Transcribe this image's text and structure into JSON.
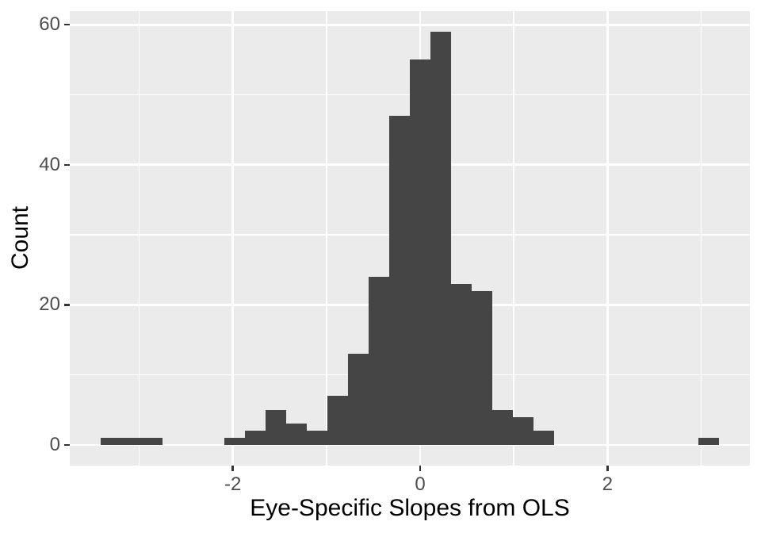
{
  "chart_data": {
    "type": "bar",
    "subtype": "histogram",
    "title": "",
    "xlabel": "Eye-Specific Slopes from OLS",
    "ylabel": "Count",
    "x_ticks": [
      -2,
      0,
      2
    ],
    "x_tick_labels": [
      "-2",
      "0",
      "2"
    ],
    "y_ticks": [
      0,
      20,
      40,
      60
    ],
    "y_tick_labels": [
      "0",
      "20",
      "40",
      "60"
    ],
    "x_minor_ticks": [
      -3,
      -1,
      1,
      3
    ],
    "y_minor_ticks": [
      10,
      30,
      50
    ],
    "xlim": [
      -3.74,
      3.52
    ],
    "ylim": [
      -2.95,
      61.95
    ],
    "grid": true,
    "legend": "none",
    "binwidth": 0.22,
    "bins": [
      {
        "start": -3.41,
        "count": 1
      },
      {
        "start": -3.19,
        "count": 1
      },
      {
        "start": -2.97,
        "count": 1
      },
      {
        "start": -2.09,
        "count": 1
      },
      {
        "start": -1.87,
        "count": 2
      },
      {
        "start": -1.65,
        "count": 5
      },
      {
        "start": -1.43,
        "count": 3
      },
      {
        "start": -1.21,
        "count": 2
      },
      {
        "start": -0.99,
        "count": 7
      },
      {
        "start": -0.77,
        "count": 13
      },
      {
        "start": -0.55,
        "count": 24
      },
      {
        "start": -0.33,
        "count": 47
      },
      {
        "start": -0.11,
        "count": 55
      },
      {
        "start": 0.11,
        "count": 59
      },
      {
        "start": 0.33,
        "count": 23
      },
      {
        "start": 0.55,
        "count": 22
      },
      {
        "start": 0.77,
        "count": 5
      },
      {
        "start": 0.99,
        "count": 4
      },
      {
        "start": 1.21,
        "count": 2
      },
      {
        "start": 2.97,
        "count": 1
      }
    ],
    "colors": {
      "bar_fill": "#454545",
      "panel_background": "#EBEBEB",
      "gridline": "#FFFFFF",
      "tick_mark": "#333333",
      "tick_label_text": "#4D4D4D",
      "axis_title_text": "#000000",
      "figure_background": "#FFFFFF"
    }
  }
}
